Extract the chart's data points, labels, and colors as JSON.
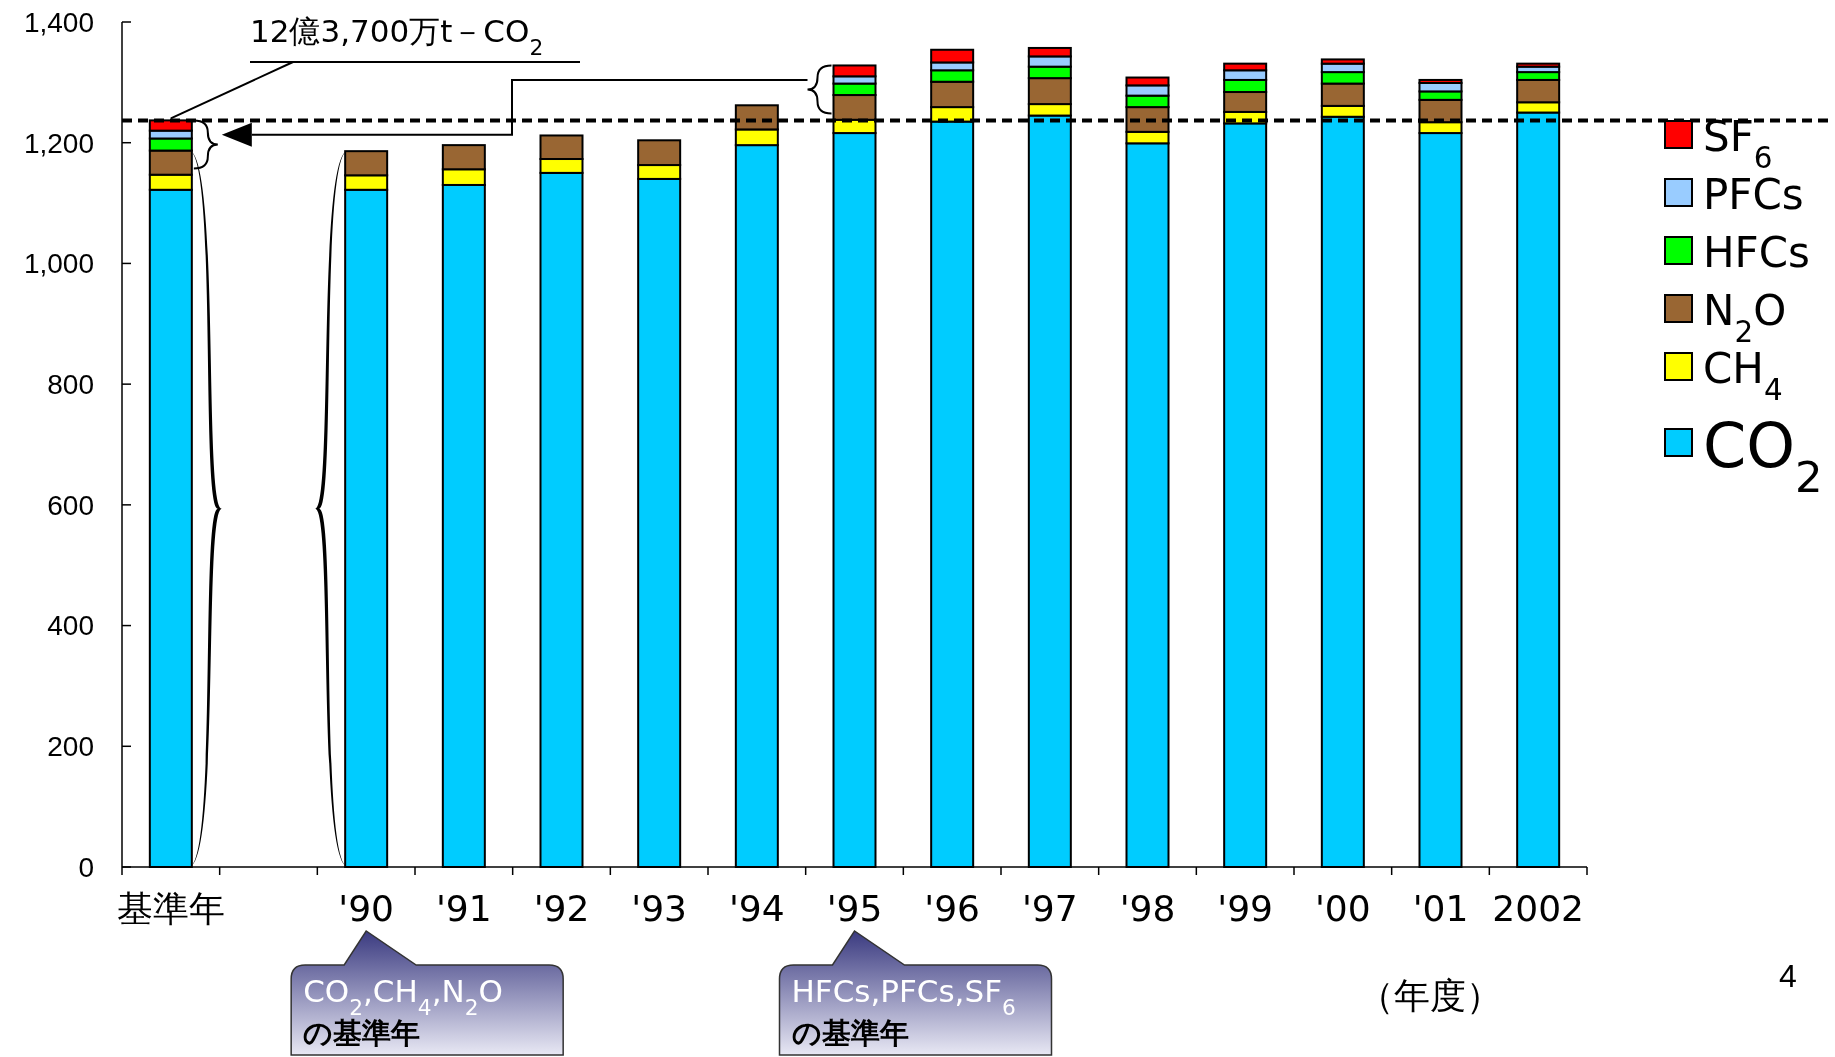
{
  "chart_data": {
    "type": "bar",
    "stacked": true,
    "categories": [
      "基準年",
      null,
      "'90",
      "'91",
      "'92",
      "'93",
      "'94",
      "'95",
      "'96",
      "'97",
      "'98",
      "'99",
      "'00",
      "'01",
      "2002"
    ],
    "series": [
      {
        "name": "CO$_{2}$",
        "color": "#00ccff",
        "values": [
          1122,
          null,
          1122,
          1130,
          1150,
          1140,
          1196,
          1216,
          1235,
          1245,
          1199,
          1232,
          1243,
          1216,
          1250
        ]
      },
      {
        "name": "CH$_{4}$",
        "color": "#ffff00",
        "values": [
          25,
          null,
          24,
          26,
          23,
          23,
          26,
          22,
          24,
          19,
          19,
          19,
          18,
          18,
          17
        ]
      },
      {
        "name": "N$_{2}$O",
        "color": "#996633",
        "values": [
          40,
          null,
          40,
          40,
          39,
          41,
          40,
          41,
          42,
          43,
          41,
          33,
          37,
          37,
          37
        ]
      },
      {
        "name": "HFCs",
        "color": "#00ff00",
        "values": [
          20,
          null,
          null,
          null,
          null,
          null,
          null,
          19,
          19,
          19,
          19,
          20,
          19,
          14,
          13
        ]
      },
      {
        "name": "PFCs",
        "color": "#99ccff",
        "values": [
          13,
          null,
          null,
          null,
          null,
          null,
          null,
          12,
          13,
          17,
          17,
          16,
          14,
          14,
          9
        ]
      },
      {
        "name": "SF$_{6}$",
        "color": "#ff0000",
        "values": [
          17,
          null,
          null,
          null,
          null,
          null,
          null,
          18,
          21,
          14,
          13,
          11,
          7,
          5,
          5
        ]
      }
    ],
    "ylim": [
      0,
      1400
    ],
    "yticks": [
      0,
      200,
      400,
      600,
      800,
      {
        "value": 1000,
        "label": "1,000"
      },
      {
        "value": 1200,
        "label": "1,200"
      },
      {
        "value": 1400,
        "label": "1,400"
      }
    ],
    "xlabel": "（年度）",
    "legend": "right",
    "grid": false,
    "ref_lines": [
      {
        "axis": "y",
        "value": 1237,
        "line_style": "dashed"
      }
    ],
    "annotations": [
      {
        "text": "12億3,700万t－CO$_{2}$",
        "x": "基準年",
        "y": 1237
      },
      "CO$_{2}$,CH$_{4}$,N$_{2}$O の基準年",
      "HFCs,PFCs,SF$_{6}$ の基準年",
      "4"
    ]
  }
}
